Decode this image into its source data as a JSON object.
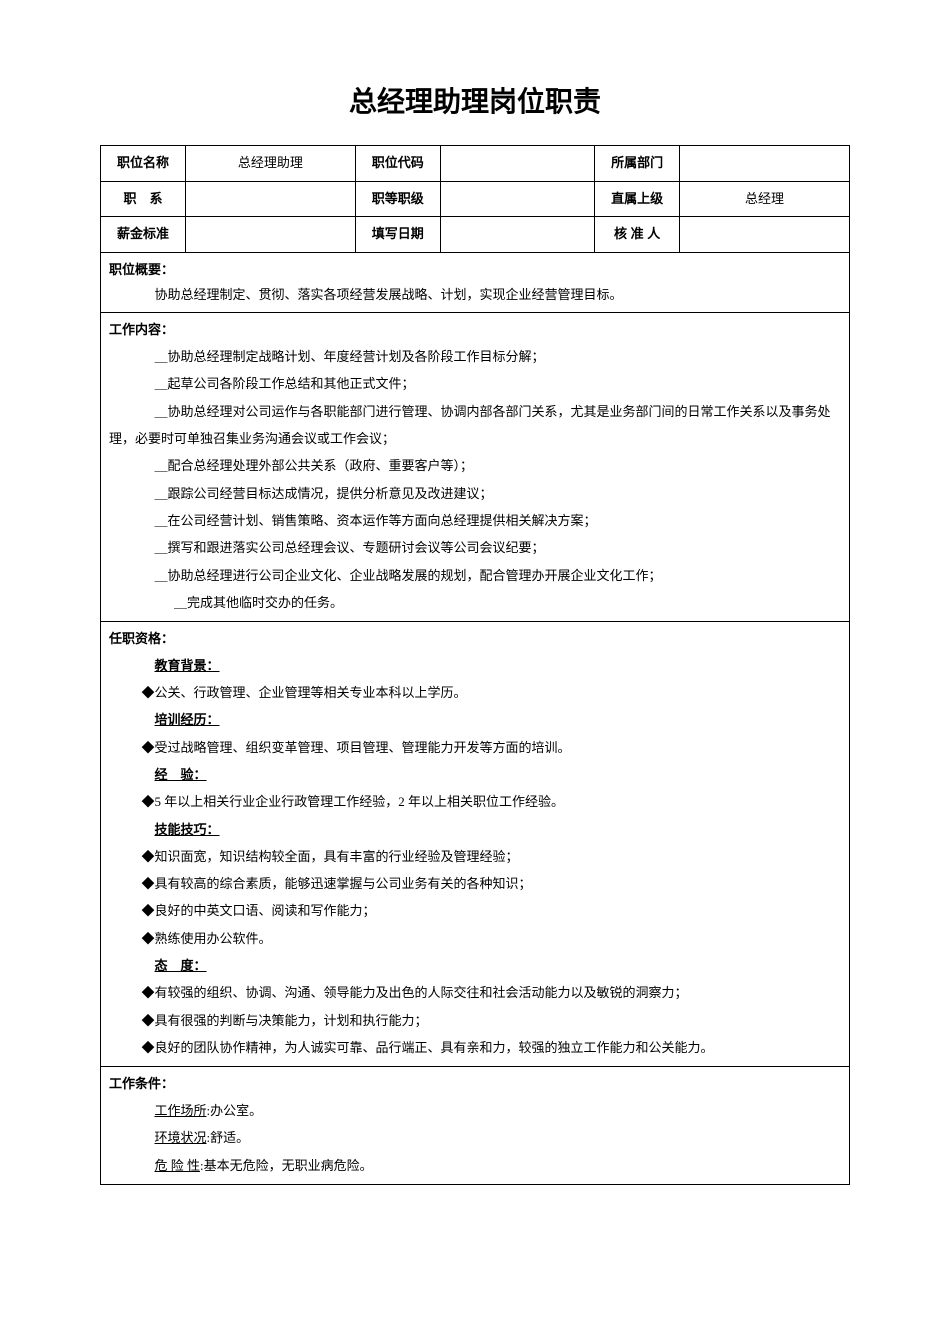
{
  "title": "总经理助理岗位职责",
  "headerRows": [
    {
      "label1": "职位名称",
      "value1": "总经理助理",
      "label2": "职位代码",
      "value2": "",
      "label3": "所属部门",
      "value3": ""
    },
    {
      "label1": "职　系",
      "value1": "",
      "label2": "职等职级",
      "value2": "",
      "label3": "直属上级",
      "value3": "总经理"
    },
    {
      "label1": "薪金标准",
      "value1": "",
      "label2": "填写日期",
      "value2": "",
      "label3": "核 准 人",
      "value3": ""
    }
  ],
  "overview": {
    "label": "职位概要：",
    "text": "协助总经理制定、贯彻、落实各项经营发展战略、计划，实现企业经营管理目标。"
  },
  "workContent": {
    "label": "工作内容：",
    "items": [
      "＿协助总经理制定战略计划、年度经营计划及各阶段工作目标分解；",
      "＿起草公司各阶段工作总结和其他正式文件；",
      "＿协助总经理对公司运作与各职能部门进行管理、协调内部各部门关系，尤其是业务部门间的日常工作关系以及事务处理，必要时可单独召集业务沟通会议或工作会议；",
      "＿配合总经理处理外部公共关系（政府、重要客户等）；",
      "＿跟踪公司经营目标达成情况，提供分析意见及改进建议；",
      "＿在公司经营计划、销售策略、资本运作等方面向总经理提供相关解决方案；",
      "＿撰写和跟进落实公司总经理会议、专题研讨会议等公司会议纪要；",
      "＿协助总经理进行公司企业文化、企业战略发展的规划，配合管理办开展企业文化工作；"
    ],
    "lastItem": "＿完成其他临时交办的任务。"
  },
  "qualifications": {
    "label": "任职资格：",
    "sections": [
      {
        "heading": "教育背景：",
        "items": [
          "◆公关、行政管理、企业管理等相关专业本科以上学历。"
        ]
      },
      {
        "heading": "培训经历：",
        "items": [
          "◆受过战略管理、组织变革管理、项目管理、管理能力开发等方面的培训。"
        ]
      },
      {
        "heading": "经　验：",
        "items": [
          "◆5 年以上相关行业企业行政管理工作经验，2 年以上相关职位工作经验。"
        ]
      },
      {
        "heading": "技能技巧：",
        "items": [
          "◆知识面宽，知识结构较全面，具有丰富的行业经验及管理经验；",
          "◆具有较高的综合素质，能够迅速掌握与公司业务有关的各种知识；",
          "◆良好的中英文口语、阅读和写作能力；",
          "◆熟练使用办公软件。"
        ]
      },
      {
        "heading": "态　度：",
        "items": [
          "◆有较强的组织、协调、沟通、领导能力及出色的人际交往和社会活动能力以及敏锐的洞察力；",
          "◆具有很强的判断与决策能力，计划和执行能力；",
          "◆良好的团队协作精神，为人诚实可靠、品行端正、具有亲和力，较强的独立工作能力和公关能力。"
        ]
      }
    ]
  },
  "workConditions": {
    "label": "工作条件：",
    "items": [
      {
        "key": "工作场所",
        "value": ":办公室。"
      },
      {
        "key": "环境状况",
        "value": ":舒适。"
      },
      {
        "key": "危 险 性",
        "value": ":基本无危险，无职业病危险。"
      }
    ]
  }
}
